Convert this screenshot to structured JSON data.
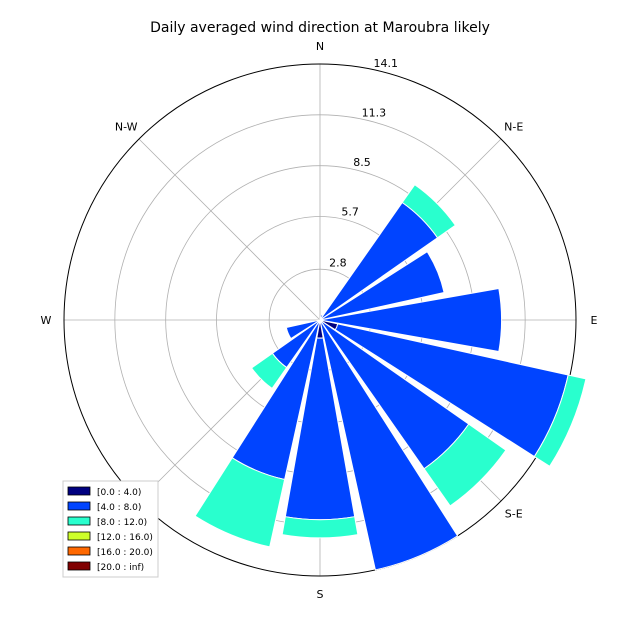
{
  "chart_data": {
    "type": "windrose",
    "title": "Daily averaged wind direction at Maroubra likely",
    "direction_labels": [
      "N",
      "N-E",
      "E",
      "S-E",
      "S",
      "S-W",
      "W",
      "N-W"
    ],
    "radial_ticks": [
      "2.8",
      "5.7",
      "8.5",
      "11.3",
      "14.1"
    ],
    "radial_tick_values": [
      2.8,
      5.7,
      8.5,
      11.3,
      14.1
    ],
    "r_max": 14.1,
    "grid": true,
    "legend_position": "lower-left",
    "bins": [
      {
        "label": "[0.0 : 4.0)",
        "color": "#000080"
      },
      {
        "label": "[4.0 : 8.0)",
        "color": "#0044ff"
      },
      {
        "label": "[8.0 : 12.0)",
        "color": "#29ffce"
      },
      {
        "label": "[12.0 : 16.0)",
        "color": "#ceff29"
      },
      {
        "label": "[16.0 : 20.0)",
        "color": "#ff6800"
      },
      {
        "label": "[20.0 : inf)",
        "color": "#800000"
      }
    ],
    "sectors": [
      {
        "direction": 0,
        "values": [
          0.0,
          0.0,
          0.0,
          0,
          0,
          0
        ]
      },
      {
        "direction": 22.5,
        "values": [
          0.0,
          0.3,
          0.0,
          0,
          0,
          0
        ]
      },
      {
        "direction": 45,
        "values": [
          0.0,
          7.9,
          1.2,
          0,
          0,
          0
        ]
      },
      {
        "direction": 67.5,
        "values": [
          0.0,
          7.0,
          0.0,
          0,
          0,
          0
        ]
      },
      {
        "direction": 90,
        "values": [
          0.0,
          10.0,
          0.0,
          0,
          0,
          0
        ]
      },
      {
        "direction": 112.5,
        "values": [
          1.0,
          13.0,
          1.0,
          0,
          0,
          0
        ]
      },
      {
        "direction": 135,
        "values": [
          0.0,
          10.0,
          2.5,
          0,
          0,
          0
        ]
      },
      {
        "direction": 157.5,
        "values": [
          0.0,
          14.1,
          0.0,
          0,
          0,
          0
        ]
      },
      {
        "direction": 180,
        "values": [
          1.0,
          10.0,
          1.0,
          0,
          0,
          0
        ]
      },
      {
        "direction": 202.5,
        "values": [
          0.0,
          9.0,
          3.8,
          0,
          0,
          0
        ]
      },
      {
        "direction": 225,
        "values": [
          0.0,
          3.2,
          1.4,
          0,
          0,
          0
        ]
      },
      {
        "direction": 247.5,
        "values": [
          0.0,
          1.9,
          0.0,
          0,
          0,
          0
        ]
      },
      {
        "direction": 270,
        "values": [
          0.0,
          0.0,
          0.0,
          0,
          0,
          0
        ]
      },
      {
        "direction": 292.5,
        "values": [
          0.0,
          0.0,
          0.0,
          0,
          0,
          0
        ]
      },
      {
        "direction": 315,
        "values": [
          0.0,
          0.0,
          0.0,
          0,
          0,
          0
        ]
      },
      {
        "direction": 337.5,
        "values": [
          0.0,
          0.0,
          0.0,
          0,
          0,
          0
        ]
      }
    ]
  }
}
